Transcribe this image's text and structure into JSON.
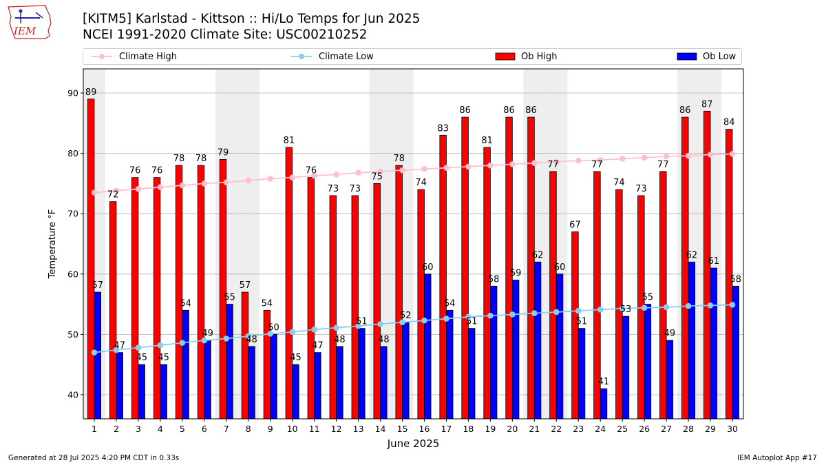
{
  "header": {
    "title_line1": "[KITM5] Karlstad - Kittson :: Hi/Lo Temps for Jun 2025",
    "title_line2": "NCEI 1991-2020 Climate Site: USC00210252",
    "logo_text": "IEM"
  },
  "legend": {
    "climate_high": "Climate High",
    "climate_low": "Climate Low",
    "ob_high": "Ob High",
    "ob_low": "Ob Low"
  },
  "colors": {
    "ob_high": "#ff0000",
    "ob_low": "#0000ff",
    "climate_high": "#ffc0cb",
    "climate_low": "#87ceeb",
    "weekend_band": "#eeeeee",
    "grid": "#b0b0b0"
  },
  "chart_data": {
    "type": "bar",
    "xlabel": "June 2025",
    "ylabel": "Temperature °F",
    "ylim": [
      36,
      94
    ],
    "yticks": [
      40,
      50,
      60,
      70,
      80,
      90
    ],
    "grid": "horizontal",
    "legend_position": "top",
    "categories": [
      "1",
      "2",
      "3",
      "4",
      "5",
      "6",
      "7",
      "8",
      "9",
      "10",
      "11",
      "12",
      "13",
      "14",
      "15",
      "16",
      "17",
      "18",
      "19",
      "20",
      "21",
      "22",
      "23",
      "24",
      "25",
      "26",
      "27",
      "28",
      "29",
      "30"
    ],
    "shaded_days": [
      1,
      7,
      8,
      14,
      15,
      21,
      22,
      28,
      29
    ],
    "series": [
      {
        "name": "Ob High",
        "kind": "bar",
        "values": [
          89,
          72,
          76,
          76,
          78,
          78,
          79,
          57,
          54,
          81,
          76,
          73,
          73,
          75,
          78,
          74,
          83,
          86,
          81,
          86,
          86,
          77,
          67,
          77,
          74,
          73,
          77,
          86,
          87,
          84
        ]
      },
      {
        "name": "Ob Low",
        "kind": "bar",
        "values": [
          57,
          47,
          45,
          45,
          54,
          49,
          55,
          48,
          50,
          45,
          47,
          48,
          51,
          48,
          52,
          60,
          54,
          51,
          58,
          59,
          62,
          60,
          51,
          41,
          53,
          55,
          49,
          62,
          61,
          58
        ]
      },
      {
        "name": "Climate High",
        "kind": "line",
        "values": [
          73.5,
          73.8,
          74.1,
          74.4,
          74.7,
          75.0,
          75.2,
          75.5,
          75.8,
          76.0,
          76.3,
          76.5,
          76.8,
          77.0,
          77.2,
          77.4,
          77.6,
          77.8,
          78.0,
          78.2,
          78.4,
          78.6,
          78.8,
          78.9,
          79.1,
          79.3,
          79.5,
          79.6,
          79.8,
          79.9
        ]
      },
      {
        "name": "Climate Low",
        "kind": "line",
        "values": [
          47.0,
          47.4,
          47.8,
          48.2,
          48.6,
          49.0,
          49.3,
          49.7,
          50.1,
          50.4,
          50.8,
          51.1,
          51.4,
          51.7,
          52.0,
          52.3,
          52.6,
          52.9,
          53.1,
          53.3,
          53.5,
          53.7,
          53.9,
          54.1,
          54.3,
          54.4,
          54.5,
          54.7,
          54.8,
          54.9
        ]
      }
    ]
  },
  "footer": {
    "generated": "Generated at 28 Jul 2025 4:20 PM CDT in 0.33s",
    "app": "IEM Autoplot App #17"
  }
}
